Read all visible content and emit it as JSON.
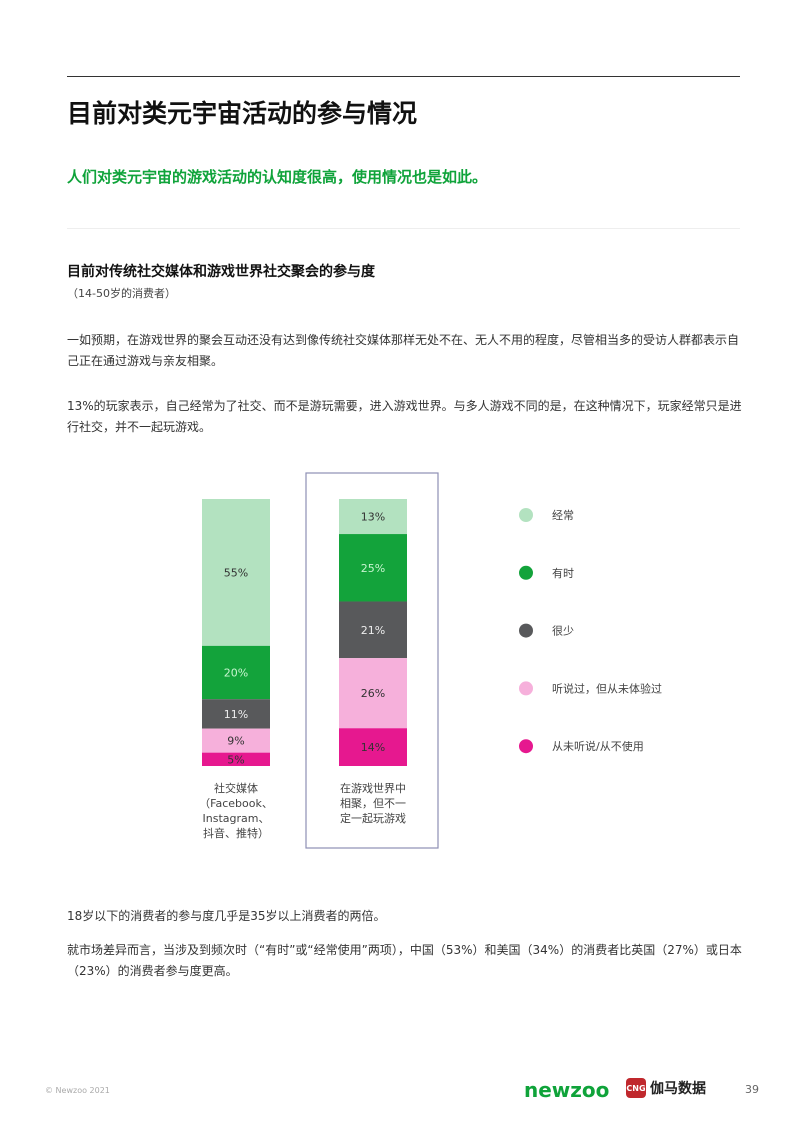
{
  "header": {
    "title": "目前对类元宇宙活动的参与情况",
    "subtitle": "人们对类元宇宙的游戏活动的认知度很高，使用情况也是如此。"
  },
  "section": {
    "title": "目前对传统社交媒体和游戏世界社交聚会的参与度",
    "note": "（14-50岁的消费者）"
  },
  "paragraphs": [
    "一如预期，在游戏世界的聚会互动还没有达到像传统社交媒体那样无处不在、无人不用的程度，尽管相当多的受访人群都表示自己正在通过游戏与亲友相聚。",
    "13%的玩家表示，自己经常为了社交、而不是游玩需要，进入游戏世界。与多人游戏不同的是，在这种情况下，玩家经常只是进行社交，并不一起玩游戏。",
    "18岁以下的消费者的参与度几乎是35岁以上消费者的两倍。",
    "就市场差异而言，当涉及到频次时（“有时”或“经常使用”两项），中国（53%）和美国（34%）的消费者比英国（27%）或日本（23%）的消费者参与度更高。"
  ],
  "chart_data": {
    "type": "bar",
    "stacked": true,
    "orientation": "vertical",
    "categories": [
      "社交媒体\n（Facebook、\nInstagram、\n抖音、推特）",
      "在游戏世界中\n相聚，但不一\n定一起玩游戏"
    ],
    "highlighted_category": 1,
    "series": [
      {
        "name": "经常",
        "color": "#b3e2c0",
        "values": [
          55,
          13
        ]
      },
      {
        "name": "有时",
        "color": "#13a33b",
        "values": [
          20,
          25
        ]
      },
      {
        "name": "很少",
        "color": "#58595b",
        "values": [
          11,
          21
        ]
      },
      {
        "name": "听说过，但从未体验过",
        "color": "#f6b0db",
        "values": [
          9,
          26
        ]
      },
      {
        "name": "从未听说/从不使用",
        "color": "#e6188f",
        "values": [
          5,
          14
        ]
      }
    ],
    "unit": "%",
    "legend": "right",
    "grid": false
  },
  "footer": {
    "copyright": "© Newzoo 2021",
    "brand": "newzoo",
    "partner": "伽马数据",
    "partner_logo": "CNG",
    "page": "39"
  }
}
